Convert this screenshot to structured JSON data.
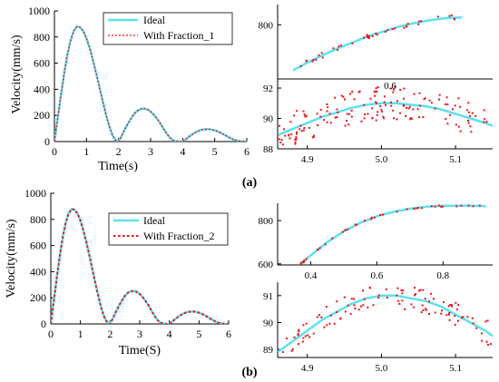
{
  "panel_labels": [
    "(a)",
    "(b)"
  ],
  "colors": {
    "ideal": "#5ce1ee",
    "fraction": "#e8141a"
  },
  "chart_data": [
    {
      "type": "line",
      "xlabel": "Time(s)",
      "ylabel": "Velocity(mm/s)",
      "xlim": [
        0,
        6
      ],
      "ylim": [
        0,
        1000
      ],
      "xticks": [
        "0",
        "1",
        "2",
        "3",
        "4",
        "5",
        "6"
      ],
      "yticks": [
        "0",
        "200",
        "400",
        "600",
        "800",
        "1000"
      ],
      "legend_position": "top-right",
      "series": [
        {
          "name": "Ideal",
          "style": "solid"
        },
        {
          "name": "With Fraction_1",
          "style": "dotted"
        }
      ],
      "x": [
        0,
        0.1,
        0.2,
        0.3,
        0.4,
        0.5,
        0.6,
        0.7,
        0.8,
        0.9,
        1.0,
        1.1,
        1.2,
        1.3,
        1.4,
        1.5,
        1.6,
        1.7,
        1.8,
        1.9,
        2.0,
        2.1,
        2.2,
        2.3,
        2.4,
        2.5,
        2.6,
        2.7,
        2.8,
        2.9,
        3.0,
        3.1,
        3.2,
        3.3,
        3.4,
        3.5,
        3.6,
        3.7,
        3.8,
        3.9,
        4.0,
        4.1,
        4.2,
        4.3,
        4.4,
        4.5,
        4.6,
        4.7,
        4.8,
        4.9,
        5.0,
        5.1,
        5.2,
        5.3,
        5.4,
        5.5,
        5.6,
        5.7,
        5.8,
        5.9,
        6.0
      ],
      "values": [
        0,
        175,
        350,
        515,
        660,
        770,
        845,
        880,
        875,
        845,
        790,
        715,
        625,
        525,
        420,
        315,
        215,
        125,
        55,
        12,
        0,
        45,
        95,
        140,
        180,
        215,
        238,
        250,
        252,
        245,
        230,
        205,
        175,
        140,
        100,
        62,
        30,
        10,
        2,
        0,
        0,
        18,
        38,
        55,
        70,
        82,
        90,
        94,
        95,
        92,
        86,
        77,
        65,
        52,
        38,
        25,
        14,
        7,
        3,
        1,
        0
      ]
    },
    {
      "type": "line",
      "xlim": [
        0.3,
        1.0
      ],
      "ylim": [
        720,
        830
      ],
      "yticks": [
        "800"
      ],
      "series": [
        {
          "name": "Ideal"
        },
        {
          "name": "With Fraction_1"
        }
      ],
      "x": [
        0.35,
        0.4,
        0.45,
        0.5,
        0.55,
        0.6,
        0.65,
        0.7,
        0.75,
        0.8,
        0.85,
        0.9
      ],
      "values": [
        733,
        745,
        756,
        766,
        775,
        784,
        791,
        798,
        803,
        807,
        810,
        811
      ]
    },
    {
      "type": "scatter",
      "xlim": [
        4.86,
        5.15
      ],
      "ylim": [
        88,
        92.6
      ],
      "xticks": [
        "4.9",
        "5.0",
        "5.1"
      ],
      "yticks": [
        "88",
        "90",
        "92"
      ],
      "annotations": [
        "0.6"
      ],
      "series": [
        {
          "name": "Ideal"
        },
        {
          "name": "With Fraction_1"
        }
      ],
      "x": [
        4.86,
        4.88,
        4.9,
        4.92,
        4.94,
        4.96,
        4.98,
        5.0,
        5.02,
        5.04,
        5.06,
        5.08,
        5.1,
        5.12,
        5.14,
        5.15
      ],
      "values": [
        88.9,
        89.3,
        89.7,
        90.1,
        90.4,
        90.7,
        90.9,
        91.0,
        91.0,
        90.9,
        90.8,
        90.6,
        90.3,
        90.0,
        89.7,
        89.5
      ]
    },
    {
      "type": "line",
      "xlabel": "Time(S)",
      "ylabel": "Velocity(mm/s)",
      "xlim": [
        0,
        6
      ],
      "ylim": [
        0,
        1000
      ],
      "xticks": [
        "0",
        "1",
        "2",
        "3",
        "4",
        "5",
        "6"
      ],
      "yticks": [
        "0",
        "200",
        "400",
        "600",
        "800",
        "1000"
      ],
      "legend_position": "top-right",
      "series": [
        {
          "name": "Ideal",
          "style": "solid"
        },
        {
          "name": "With Fraction_2",
          "style": "dotted"
        }
      ],
      "x": [
        0,
        0.1,
        0.2,
        0.3,
        0.4,
        0.5,
        0.6,
        0.7,
        0.8,
        0.9,
        1.0,
        1.1,
        1.2,
        1.3,
        1.4,
        1.5,
        1.6,
        1.7,
        1.8,
        1.9,
        2.0,
        2.1,
        2.2,
        2.3,
        2.4,
        2.5,
        2.6,
        2.7,
        2.8,
        2.9,
        3.0,
        3.1,
        3.2,
        3.3,
        3.4,
        3.5,
        3.6,
        3.7,
        3.8,
        3.9,
        4.0,
        4.1,
        4.2,
        4.3,
        4.4,
        4.5,
        4.6,
        4.7,
        4.8,
        4.9,
        5.0,
        5.1,
        5.2,
        5.3,
        5.4,
        5.5,
        5.6,
        5.7,
        5.8,
        5.9,
        6.0
      ],
      "values": [
        0,
        175,
        350,
        515,
        660,
        770,
        845,
        880,
        875,
        845,
        790,
        715,
        625,
        525,
        420,
        315,
        215,
        125,
        55,
        12,
        0,
        45,
        95,
        140,
        180,
        215,
        238,
        250,
        252,
        245,
        230,
        205,
        175,
        140,
        100,
        62,
        30,
        10,
        2,
        0,
        0,
        18,
        38,
        55,
        70,
        82,
        90,
        94,
        95,
        92,
        86,
        77,
        65,
        52,
        38,
        25,
        14,
        7,
        3,
        1,
        0
      ]
    },
    {
      "type": "line",
      "xlim": [
        0.3,
        0.95
      ],
      "ylim": [
        595,
        880
      ],
      "xticks": [
        "0.4",
        "0.6",
        "0.8"
      ],
      "yticks": [
        "600",
        "800"
      ],
      "series": [
        {
          "name": "Ideal"
        },
        {
          "name": "With Fraction_2"
        }
      ],
      "x": [
        0.37,
        0.4,
        0.45,
        0.5,
        0.55,
        0.6,
        0.65,
        0.7,
        0.75,
        0.8,
        0.85,
        0.9,
        0.93
      ],
      "values": [
        600,
        640,
        700,
        750,
        790,
        820,
        840,
        855,
        864,
        868,
        869,
        868,
        866
      ]
    },
    {
      "type": "scatter",
      "xlim": [
        4.86,
        5.15
      ],
      "ylim": [
        88.7,
        91.5
      ],
      "xticks": [
        "4.9",
        "5.0",
        "5.1"
      ],
      "yticks": [
        "89",
        "90",
        "91"
      ],
      "series": [
        {
          "name": "Ideal"
        },
        {
          "name": "With Fraction_2"
        }
      ],
      "x": [
        4.86,
        4.88,
        4.9,
        4.92,
        4.94,
        4.96,
        4.98,
        5.0,
        5.02,
        5.04,
        5.06,
        5.08,
        5.1,
        5.12,
        5.14,
        5.15
      ],
      "values": [
        88.9,
        89.3,
        89.7,
        90.1,
        90.4,
        90.7,
        90.9,
        91.0,
        91.0,
        90.9,
        90.8,
        90.6,
        90.3,
        90.0,
        89.7,
        89.5
      ]
    }
  ]
}
